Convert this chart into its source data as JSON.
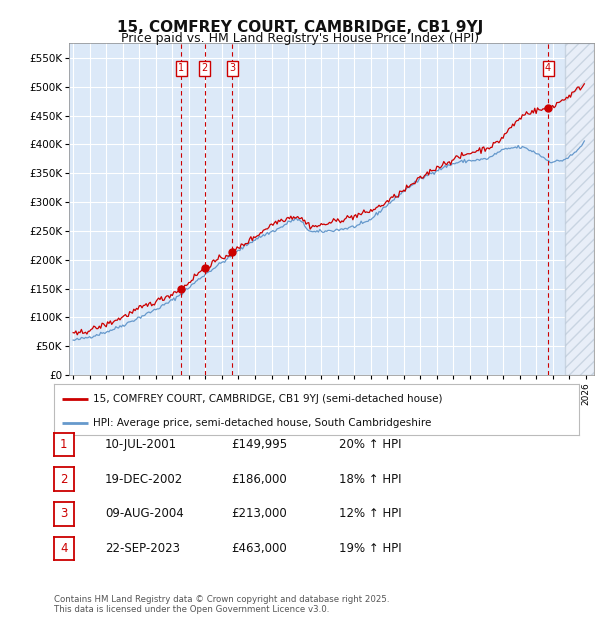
{
  "title": "15, COMFREY COURT, CAMBRIDGE, CB1 9YJ",
  "subtitle": "Price paid vs. HM Land Registry's House Price Index (HPI)",
  "legend_line1": "15, COMFREY COURT, CAMBRIDGE, CB1 9YJ (semi-detached house)",
  "legend_line2": "HPI: Average price, semi-detached house, South Cambridgeshire",
  "footer1": "Contains HM Land Registry data © Crown copyright and database right 2025.",
  "footer2": "This data is licensed under the Open Government Licence v3.0.",
  "ylim": [
    0,
    575000
  ],
  "yticks": [
    0,
    50000,
    100000,
    150000,
    200000,
    250000,
    300000,
    350000,
    400000,
    450000,
    500000,
    550000
  ],
  "ytick_labels": [
    "£0",
    "£50K",
    "£100K",
    "£150K",
    "£200K",
    "£250K",
    "£300K",
    "£350K",
    "£400K",
    "£450K",
    "£500K",
    "£550K"
  ],
  "xlim_start": 1994.75,
  "xlim_end": 2026.5,
  "xticks": [
    1995,
    1996,
    1997,
    1998,
    1999,
    2000,
    2001,
    2002,
    2003,
    2004,
    2005,
    2006,
    2007,
    2008,
    2009,
    2010,
    2011,
    2012,
    2013,
    2014,
    2015,
    2016,
    2017,
    2018,
    2019,
    2020,
    2021,
    2022,
    2023,
    2024,
    2025,
    2026
  ],
  "background_color": "#dce9f8",
  "grid_color": "#ffffff",
  "red_color": "#cc0000",
  "blue_color": "#6699cc",
  "hatch_start": 2024.75,
  "transactions": [
    {
      "num": 1,
      "date": "10-JUL-2001",
      "price": 149995,
      "pct": "20%",
      "x": 2001.53
    },
    {
      "num": 2,
      "date": "19-DEC-2002",
      "price": 186000,
      "pct": "18%",
      "x": 2002.96
    },
    {
      "num": 3,
      "date": "09-AUG-2004",
      "price": 213000,
      "pct": "12%",
      "x": 2004.61
    },
    {
      "num": 4,
      "date": "22-SEP-2023",
      "price": 463000,
      "pct": "19%",
      "x": 2023.72
    }
  ]
}
